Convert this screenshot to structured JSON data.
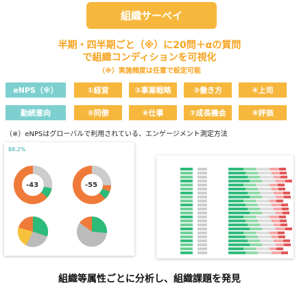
{
  "title": "組織サーベイ",
  "headline_line1": "半期・四半期ごと（※）に20問＋αの質問",
  "headline_line2": "で組織コンディションを可視化",
  "headline_note": "（※）実施頻度は任意で設定可能",
  "tags": {
    "enps": "eNPS（※）",
    "kinmu": "勤続意向"
  },
  "categories": [
    "①経営",
    "②事業戦略",
    "③働き方",
    "④上司",
    "⑤同僚",
    "⑥仕事",
    "⑦成長機会",
    "⑧評価"
  ],
  "footnote": "（※）eNPSはグローバルで利用されている、エンゲージメント測定方法",
  "footer": "組織等属性ごとに分析し、組織課題を発見",
  "mini": {
    "score_main": "88.2%",
    "donut1": "-43",
    "donut2": "-55"
  },
  "colors": {
    "accent": "#f6b73c",
    "teal": "#7ed0d0",
    "text_orange": "#f6a420"
  }
}
